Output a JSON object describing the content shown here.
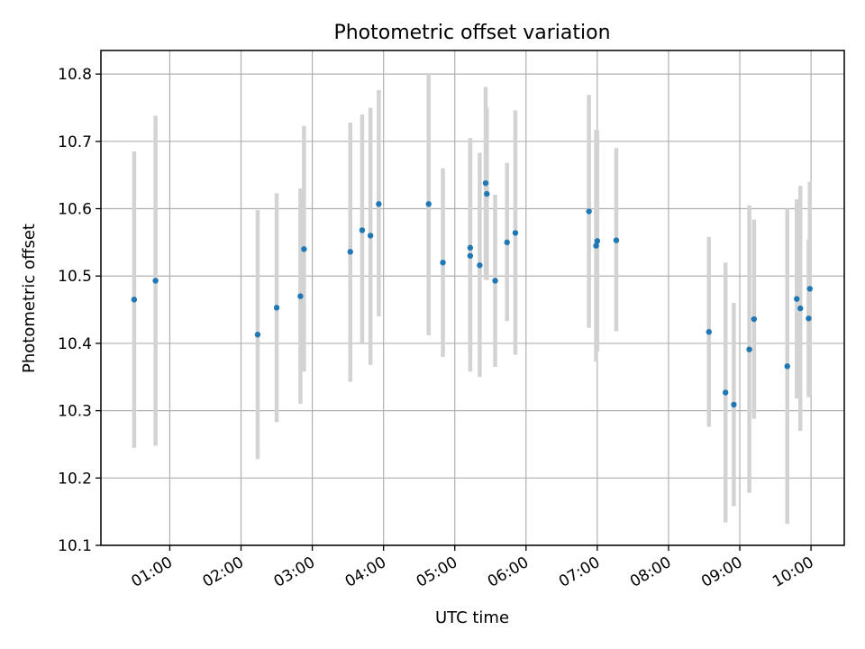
{
  "chart_data": {
    "type": "scatter",
    "title": "Photometric offset variation",
    "xlabel": "UTC time",
    "ylabel": "Photometric offset",
    "xlim": [
      "00:02",
      "10:28"
    ],
    "ylim": [
      10.1,
      10.835
    ],
    "xticks": [
      "01:00",
      "02:00",
      "03:00",
      "04:00",
      "05:00",
      "06:00",
      "07:00",
      "08:00",
      "09:00",
      "10:00"
    ],
    "yticks": [
      "10.1",
      "10.2",
      "10.3",
      "10.4",
      "10.5",
      "10.6",
      "10.7",
      "10.8"
    ],
    "grid": true,
    "errorbar_color": "#d3d3d3",
    "marker_color": "#1f77b4",
    "points": [
      {
        "x": "00:30",
        "y": 10.465,
        "lo": 10.245,
        "hi": 10.685
      },
      {
        "x": "00:48",
        "y": 10.493,
        "lo": 10.248,
        "hi": 10.738
      },
      {
        "x": "02:14",
        "y": 10.413,
        "lo": 10.228,
        "hi": 10.598
      },
      {
        "x": "02:30",
        "y": 10.453,
        "lo": 10.283,
        "hi": 10.623
      },
      {
        "x": "02:50",
        "y": 10.47,
        "lo": 10.31,
        "hi": 10.63
      },
      {
        "x": "02:53",
        "y": 10.54,
        "lo": 10.358,
        "hi": 10.723
      },
      {
        "x": "03:32",
        "y": 10.536,
        "lo": 10.343,
        "hi": 10.728
      },
      {
        "x": "03:42",
        "y": 10.568,
        "lo": 10.4,
        "hi": 10.74
      },
      {
        "x": "03:49",
        "y": 10.56,
        "lo": 10.368,
        "hi": 10.75
      },
      {
        "x": "03:56",
        "y": 10.607,
        "lo": 10.44,
        "hi": 10.776
      },
      {
        "x": "04:38",
        "y": 10.607,
        "lo": 10.412,
        "hi": 10.8
      },
      {
        "x": "04:50",
        "y": 10.52,
        "lo": 10.38,
        "hi": 10.66
      },
      {
        "x": "05:13",
        "y": 10.542,
        "lo": 10.38,
        "hi": 10.705
      },
      {
        "x": "05:13",
        "y": 10.53,
        "lo": 10.358,
        "hi": 10.703
      },
      {
        "x": "05:21",
        "y": 10.516,
        "lo": 10.35,
        "hi": 10.683
      },
      {
        "x": "05:26",
        "y": 10.638,
        "lo": 10.495,
        "hi": 10.781
      },
      {
        "x": "05:27",
        "y": 10.622,
        "lo": 10.494,
        "hi": 10.75
      },
      {
        "x": "05:34",
        "y": 10.493,
        "lo": 10.365,
        "hi": 10.621
      },
      {
        "x": "05:44",
        "y": 10.55,
        "lo": 10.433,
        "hi": 10.668
      },
      {
        "x": "05:51",
        "y": 10.564,
        "lo": 10.383,
        "hi": 10.746
      },
      {
        "x": "06:53",
        "y": 10.596,
        "lo": 10.423,
        "hi": 10.769
      },
      {
        "x": "06:59",
        "y": 10.545,
        "lo": 10.373,
        "hi": 10.717
      },
      {
        "x": "07:00",
        "y": 10.552,
        "lo": 10.388,
        "hi": 10.716
      },
      {
        "x": "07:16",
        "y": 10.553,
        "lo": 10.418,
        "hi": 10.69
      },
      {
        "x": "08:34",
        "y": 10.417,
        "lo": 10.276,
        "hi": 10.558
      },
      {
        "x": "08:48",
        "y": 10.327,
        "lo": 10.134,
        "hi": 10.52
      },
      {
        "x": "08:55",
        "y": 10.309,
        "lo": 10.158,
        "hi": 10.46
      },
      {
        "x": "09:08",
        "y": 10.391,
        "lo": 10.178,
        "hi": 10.605
      },
      {
        "x": "09:12",
        "y": 10.436,
        "lo": 10.288,
        "hi": 10.584
      },
      {
        "x": "09:40",
        "y": 10.366,
        "lo": 10.132,
        "hi": 10.6
      },
      {
        "x": "09:48",
        "y": 10.466,
        "lo": 10.318,
        "hi": 10.614
      },
      {
        "x": "09:51",
        "y": 10.452,
        "lo": 10.27,
        "hi": 10.634
      },
      {
        "x": "09:58",
        "y": 10.437,
        "lo": 10.32,
        "hi": 10.554
      },
      {
        "x": "09:59",
        "y": 10.481,
        "lo": 10.322,
        "hi": 10.64
      }
    ]
  }
}
